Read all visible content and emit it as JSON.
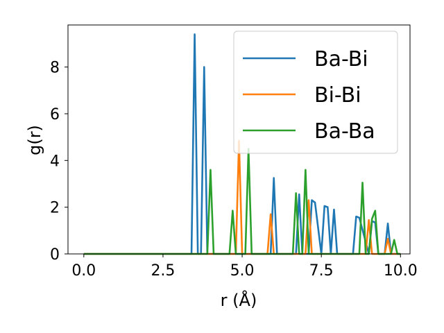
{
  "chart_data": {
    "type": "line",
    "xlabel": "r (Å)",
    "ylabel": "g(r)",
    "xlim": [
      -0.5,
      10.3
    ],
    "ylim": [
      0,
      9.8
    ],
    "xticks": [
      0.0,
      2.5,
      5.0,
      7.5,
      10.0
    ],
    "xtick_labels": [
      "0.0",
      "2.5",
      "5.0",
      "7.5",
      "10.0"
    ],
    "yticks": [
      0,
      2,
      4,
      6,
      8
    ],
    "ytick_labels": [
      "0",
      "2",
      "4",
      "6",
      "8"
    ],
    "grid": false,
    "legend_position": "top-right",
    "series": [
      {
        "name": "Ba-Bi",
        "color": "#1f77b4",
        "x": [
          0.0,
          3.4,
          3.5,
          3.6,
          3.7,
          3.8,
          3.9,
          5.9,
          6.0,
          6.1,
          6.7,
          6.8,
          6.9,
          7.1,
          7.2,
          7.3,
          7.5,
          7.6,
          7.7,
          7.8,
          7.9,
          8.0,
          8.5,
          8.6,
          8.7,
          9.0,
          9.1,
          9.2,
          9.3,
          9.5,
          9.6,
          9.7,
          10.0
        ],
        "y": [
          0.0,
          0.0,
          9.4,
          0.0,
          0.0,
          8.0,
          0.0,
          0.0,
          3.25,
          0.0,
          0.0,
          2.55,
          0.0,
          0.0,
          2.3,
          2.2,
          0.0,
          2.05,
          2.0,
          0.0,
          1.9,
          0.0,
          0.0,
          1.6,
          1.55,
          0.0,
          1.4,
          1.35,
          0.0,
          0.0,
          1.3,
          0.0,
          0.0
        ]
      },
      {
        "name": "Bi-Bi",
        "color": "#ff7f0e",
        "x": [
          0.0,
          4.8,
          4.9,
          5.0,
          5.8,
          5.9,
          6.0,
          7.0,
          7.1,
          7.2,
          8.9,
          9.0,
          9.1,
          9.5,
          9.6,
          9.7,
          10.0
        ],
        "y": [
          0.0,
          0.0,
          4.85,
          0.0,
          0.0,
          1.7,
          0.0,
          0.0,
          2.3,
          0.0,
          0.0,
          1.45,
          0.0,
          0.0,
          0.65,
          0.0,
          0.0
        ]
      },
      {
        "name": "Ba-Ba",
        "color": "#2ca02c",
        "x": [
          0.0,
          3.9,
          4.0,
          4.1,
          4.6,
          4.7,
          4.8,
          5.1,
          5.2,
          5.3,
          6.6,
          6.7,
          6.8,
          6.9,
          7.0,
          7.1,
          8.7,
          8.8,
          8.9,
          9.0,
          9.1,
          9.2,
          9.3,
          9.7,
          9.8,
          9.9,
          10.0
        ],
        "y": [
          0.0,
          0.0,
          3.6,
          0.0,
          0.0,
          1.85,
          0.0,
          0.0,
          4.5,
          0.0,
          0.0,
          2.6,
          0.0,
          0.0,
          3.6,
          0.0,
          0.0,
          3.05,
          0.0,
          0.0,
          1.5,
          1.85,
          0.0,
          0.0,
          0.6,
          0.0,
          0.0
        ]
      }
    ]
  }
}
